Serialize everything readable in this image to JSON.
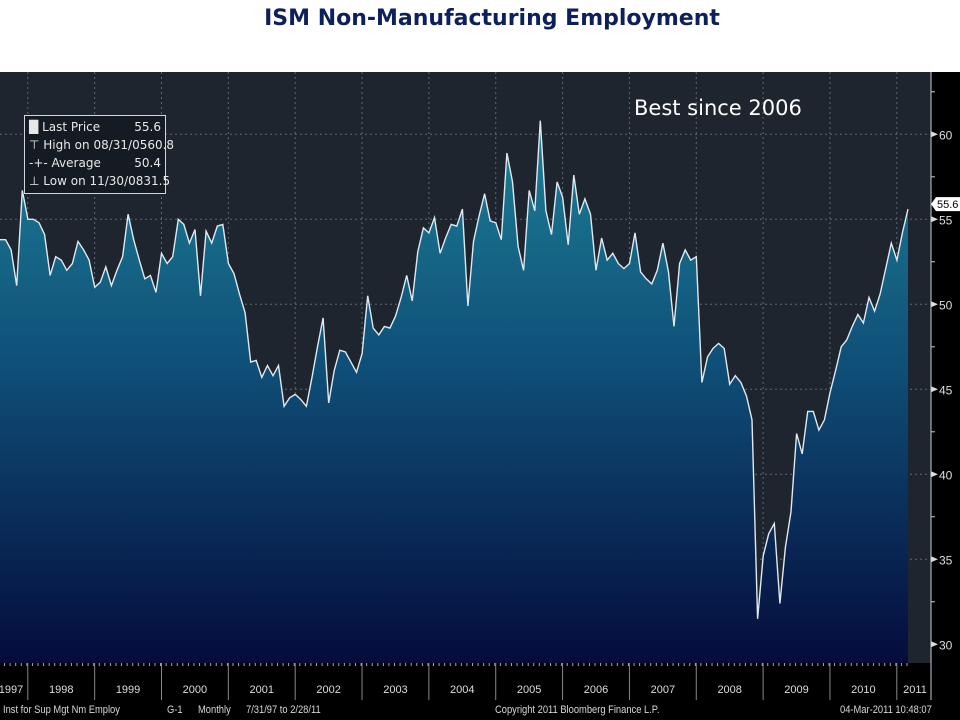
{
  "title": "ISM Non-Manufacturing Employment",
  "annotation": "Best since 2006",
  "legend": [
    {
      "icon": "square-icon",
      "label": "Last Price",
      "value": "55.6"
    },
    {
      "icon": "high-marker-icon",
      "label": "High on 08/31/05",
      "value": "60.8"
    },
    {
      "icon": "average-marker-icon",
      "label": "Average",
      "value": "50.4"
    },
    {
      "icon": "low-marker-icon",
      "label": "Low on 11/30/08",
      "value": "31.5"
    }
  ],
  "footer": {
    "security": "Inst for Sup Mgt Nm Employ",
    "page": "G-1",
    "frequency": "Monthly",
    "range": "7/31/97 to 2/28/11",
    "copyright": "Copyright 2011 Bloomberg Finance L.P.",
    "timestamp": "04-Mar-2011 10:48:07"
  },
  "chart_data": {
    "type": "area",
    "title": "ISM Non-Manufacturing Employment",
    "start": "1997-07",
    "frequency": "monthly",
    "x_tick_labels": [
      "1997",
      "1998",
      "1999",
      "2000",
      "2001",
      "2002",
      "2003",
      "2004",
      "2005",
      "2006",
      "2007",
      "2008",
      "2009",
      "2010",
      "2011"
    ],
    "y_ticks": [
      30,
      35,
      40,
      45,
      50,
      55,
      60
    ],
    "ylim": [
      29,
      64
    ],
    "last_value_label": "55.6",
    "grid": true,
    "axis_side": "right",
    "values": [
      53.8,
      53.8,
      53.2,
      51.1,
      56.7,
      55.0,
      55.0,
      54.8,
      54.1,
      51.7,
      52.8,
      52.6,
      52.0,
      52.4,
      53.7,
      53.2,
      52.6,
      51.0,
      51.3,
      52.2,
      51.1,
      52.0,
      52.8,
      55.3,
      53.8,
      52.6,
      51.5,
      51.7,
      50.7,
      53.0,
      52.4,
      52.8,
      55.0,
      54.7,
      53.6,
      54.4,
      50.5,
      54.3,
      53.6,
      54.6,
      54.7,
      52.4,
      51.8,
      50.6,
      49.5,
      46.6,
      46.7,
      45.7,
      46.4,
      45.8,
      46.4,
      44.0,
      44.5,
      44.7,
      44.4,
      44.0,
      45.7,
      47.5,
      49.2,
      44.2,
      46.1,
      47.3,
      47.2,
      46.6,
      46.0,
      47.1,
      50.5,
      48.6,
      48.2,
      48.7,
      48.6,
      49.3,
      50.4,
      51.7,
      50.2,
      53.1,
      54.5,
      54.2,
      55.1,
      53.0,
      53.9,
      54.7,
      54.6,
      55.6,
      49.9,
      53.7,
      55.2,
      56.5,
      54.9,
      54.8,
      53.8,
      58.9,
      57.2,
      53.4,
      52.0,
      56.7,
      55.5,
      60.8,
      55.5,
      54.1,
      57.2,
      56.3,
      53.5,
      57.6,
      55.3,
      56.2,
      55.3,
      52.0,
      53.9,
      52.6,
      53.0,
      52.4,
      52.1,
      52.4,
      54.2,
      51.9,
      51.5,
      51.2,
      52.0,
      53.6,
      51.9,
      48.7,
      52.4,
      53.2,
      52.6,
      52.8,
      45.4,
      46.9,
      47.4,
      47.7,
      47.4,
      45.3,
      45.8,
      45.4,
      44.6,
      43.2,
      31.5,
      35.2,
      36.5,
      37.1,
      32.4,
      35.7,
      37.8,
      42.4,
      41.2,
      43.7,
      43.7,
      42.6,
      43.2,
      44.8,
      46.1,
      47.5,
      47.9,
      48.7,
      49.4,
      48.9,
      50.4,
      49.6,
      50.6,
      52.1,
      53.6,
      52.6,
      54.2,
      55.6
    ]
  }
}
